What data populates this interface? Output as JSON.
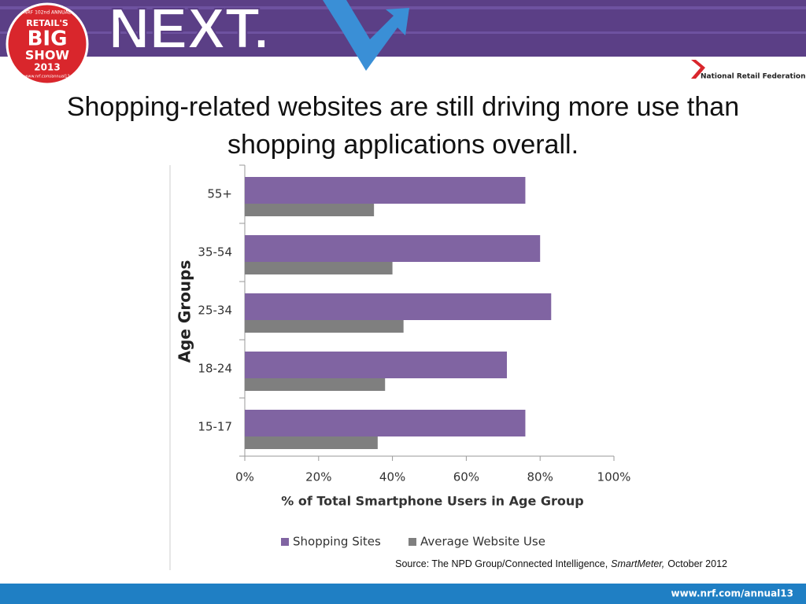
{
  "header": {
    "event_logo": {
      "top": "NRF 102nd ANNUAL",
      "line1": "RETAIL'S",
      "line2": "BIG",
      "line3": "SHOW",
      "year": "2013",
      "url": "www.nrf.com/annual13"
    },
    "brand": "NEXT.",
    "org": "National Retail Federation"
  },
  "chart_data": {
    "type": "hbar",
    "title": "Shopping-related websites are still driving more use than shopping applications overall.",
    "categories": [
      "15-17",
      "18-24",
      "25-34",
      "35-54",
      "55+"
    ],
    "series": [
      {
        "name": "Shopping Sites",
        "color": "#8064a2",
        "values": [
          76,
          71,
          83,
          80,
          76
        ]
      },
      {
        "name": "Average Website Use",
        "color": "#7f7f7f",
        "values": [
          36,
          38,
          43,
          40,
          35
        ]
      }
    ],
    "xlabel": "% of Total Smartphone Users in Age Group",
    "ylabel": "Age Groups",
    "xlim": [
      0,
      100
    ],
    "xticks": [
      {
        "value": 0,
        "label": "0%"
      },
      {
        "value": 20,
        "label": "20%"
      },
      {
        "value": 40,
        "label": "40%"
      },
      {
        "value": 60,
        "label": "60%"
      },
      {
        "value": 80,
        "label": "80%"
      },
      {
        "value": 100,
        "label": "100%"
      }
    ],
    "grid": false,
    "legend": "bottom"
  },
  "source": {
    "text": "Source: The NPD Group/Connected Intelligence,",
    "publication": "SmartMeter,",
    "date": "October 2012"
  },
  "footer": {
    "url": "www.nrf.com/annual13"
  }
}
